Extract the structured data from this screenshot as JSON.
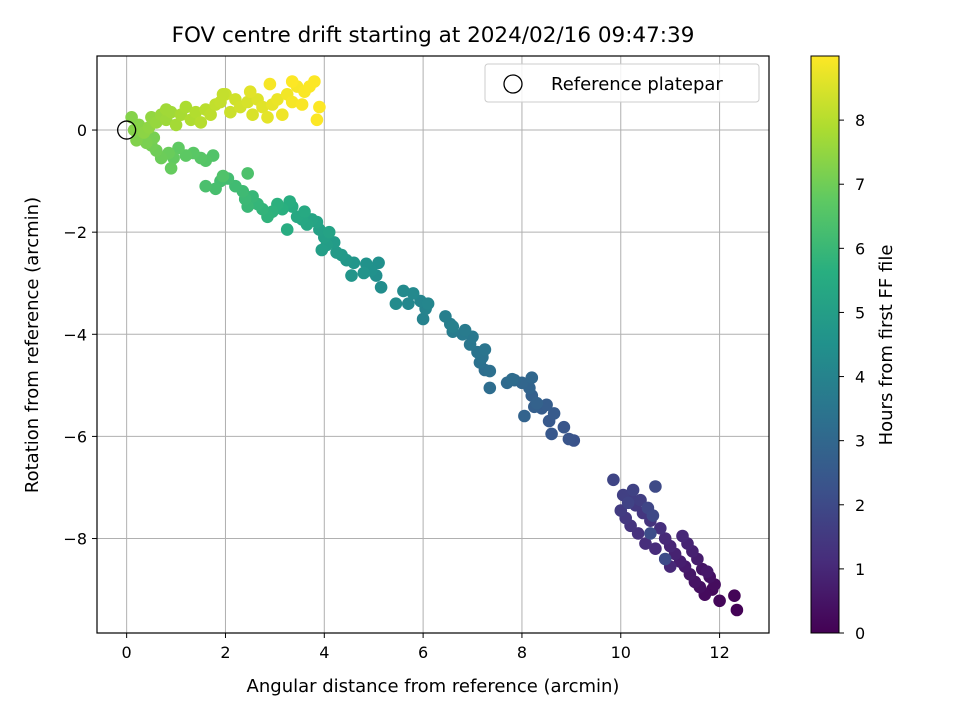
{
  "chart_data": {
    "type": "scatter",
    "title": "FOV centre drift starting at 2024/02/16 09:47:39",
    "xlabel": "Angular distance from reference (arcmin)",
    "ylabel": "Rotation from reference (arcmin)",
    "xlim": [
      -0.6,
      13.0
    ],
    "ylim": [
      -9.85,
      1.45
    ],
    "x_ticks": [
      0,
      2,
      4,
      6,
      8,
      10,
      12
    ],
    "x_tick_labels": [
      "0",
      "2",
      "4",
      "6",
      "8",
      "10",
      "12"
    ],
    "y_ticks": [
      0,
      -2,
      -4,
      -6,
      -8
    ],
    "y_tick_labels": [
      "0",
      "−2",
      "−4",
      "−6",
      "−8"
    ],
    "grid": true,
    "legend": {
      "placement": "top-right",
      "entries": [
        "Reference platepar"
      ]
    },
    "reference_point": {
      "x": 0,
      "y": 0
    },
    "colorbar": {
      "label": "Hours from first FF file",
      "colormap": "viridis",
      "range": [
        0,
        9
      ],
      "ticks": [
        0,
        1,
        2,
        3,
        4,
        5,
        6,
        7,
        8
      ],
      "tick_labels": [
        "0",
        "1",
        "2",
        "3",
        "4",
        "5",
        "6",
        "7",
        "8"
      ]
    },
    "series": [
      {
        "points": [
          [
            12.35,
            -9.4,
            0.05
          ],
          [
            12.3,
            -9.12,
            0.1
          ],
          [
            12.0,
            -9.22,
            0.15
          ],
          [
            11.85,
            -9.0,
            0.2
          ],
          [
            11.7,
            -9.1,
            0.25
          ],
          [
            11.9,
            -8.9,
            0.3
          ],
          [
            11.6,
            -8.95,
            0.35
          ],
          [
            11.8,
            -8.75,
            0.4
          ],
          [
            11.5,
            -8.85,
            0.45
          ],
          [
            11.65,
            -8.6,
            0.5
          ],
          [
            11.4,
            -8.7,
            0.55
          ],
          [
            11.75,
            -8.65,
            0.6
          ],
          [
            11.3,
            -8.55,
            0.65
          ],
          [
            11.55,
            -8.4,
            0.7
          ],
          [
            11.2,
            -8.45,
            0.75
          ],
          [
            11.45,
            -8.25,
            0.8
          ],
          [
            11.1,
            -8.3,
            0.85
          ],
          [
            11.35,
            -8.1,
            0.9
          ],
          [
            11.0,
            -8.15,
            0.95
          ],
          [
            11.25,
            -7.95,
            1.0
          ],
          [
            10.9,
            -8.0,
            1.05
          ],
          [
            10.7,
            -8.2,
            1.1
          ],
          [
            10.5,
            -8.1,
            1.15
          ],
          [
            10.8,
            -7.8,
            1.2
          ],
          [
            10.35,
            -7.9,
            1.25
          ],
          [
            10.6,
            -7.65,
            1.3
          ],
          [
            10.2,
            -7.75,
            1.35
          ],
          [
            10.45,
            -7.5,
            1.4
          ],
          [
            10.1,
            -7.6,
            1.45
          ],
          [
            10.3,
            -7.35,
            1.5
          ],
          [
            10.0,
            -7.45,
            1.55
          ],
          [
            10.2,
            -7.2,
            1.6
          ],
          [
            10.4,
            -7.25,
            1.65
          ],
          [
            10.05,
            -7.15,
            1.7
          ],
          [
            10.25,
            -7.05,
            1.75
          ],
          [
            10.15,
            -7.3,
            1.8
          ],
          [
            9.85,
            -6.85,
            1.85
          ],
          [
            10.55,
            -7.4,
            1.9
          ],
          [
            10.65,
            -7.55,
            1.95
          ],
          [
            11.0,
            -8.55,
            1.0
          ],
          [
            10.7,
            -6.98,
            2.0
          ],
          [
            10.9,
            -8.4,
            2.05
          ],
          [
            10.6,
            -7.9,
            2.1
          ],
          [
            9.05,
            -6.08,
            2.3
          ],
          [
            8.95,
            -6.05,
            2.35
          ],
          [
            8.85,
            -5.82,
            2.4
          ],
          [
            8.6,
            -5.95,
            2.45
          ],
          [
            8.55,
            -5.7,
            2.5
          ],
          [
            8.65,
            -5.55,
            2.55
          ],
          [
            8.4,
            -5.45,
            2.6
          ],
          [
            8.5,
            -5.38,
            2.65
          ],
          [
            8.25,
            -5.42,
            2.7
          ],
          [
            8.2,
            -5.2,
            2.75
          ],
          [
            8.3,
            -5.35,
            2.8
          ],
          [
            8.05,
            -5.6,
            2.85
          ],
          [
            8.15,
            -5.05,
            2.9
          ],
          [
            8.0,
            -4.95,
            2.95
          ],
          [
            8.2,
            -4.85,
            3.0
          ],
          [
            7.85,
            -4.9,
            3.05
          ],
          [
            7.7,
            -4.95,
            3.1
          ],
          [
            7.8,
            -4.88,
            3.15
          ],
          [
            7.35,
            -5.05,
            3.2
          ],
          [
            7.25,
            -4.7,
            3.25
          ],
          [
            7.35,
            -4.72,
            3.3
          ],
          [
            7.15,
            -4.55,
            3.35
          ],
          [
            7.2,
            -4.45,
            3.4
          ],
          [
            7.1,
            -4.35,
            3.45
          ],
          [
            7.25,
            -4.3,
            3.5
          ],
          [
            6.95,
            -4.2,
            3.55
          ],
          [
            7.0,
            -4.05,
            3.6
          ],
          [
            6.8,
            -4.0,
            3.65
          ],
          [
            6.85,
            -3.92,
            3.7
          ],
          [
            6.6,
            -3.95,
            3.75
          ],
          [
            6.55,
            -3.8,
            3.8
          ],
          [
            6.45,
            -3.65,
            3.85
          ],
          [
            6.6,
            -3.85,
            3.9
          ],
          [
            6.0,
            -3.7,
            3.95
          ],
          [
            6.05,
            -3.5,
            4.0
          ],
          [
            5.95,
            -3.35,
            4.05
          ],
          [
            6.1,
            -3.4,
            4.1
          ],
          [
            5.7,
            -3.4,
            4.15
          ],
          [
            5.8,
            -3.2,
            4.2
          ],
          [
            5.6,
            -3.15,
            4.25
          ],
          [
            5.45,
            -3.4,
            4.3
          ],
          [
            5.15,
            -3.08,
            4.35
          ],
          [
            5.05,
            -2.85,
            4.4
          ],
          [
            5.1,
            -2.6,
            4.45
          ],
          [
            4.95,
            -2.75,
            4.5
          ],
          [
            4.85,
            -2.62,
            4.55
          ],
          [
            4.8,
            -2.8,
            4.6
          ],
          [
            4.55,
            -2.85,
            4.65
          ],
          [
            4.6,
            -2.6,
            4.7
          ],
          [
            4.45,
            -2.55,
            4.75
          ],
          [
            4.35,
            -2.45,
            4.8
          ],
          [
            4.25,
            -2.4,
            4.85
          ],
          [
            4.2,
            -2.2,
            4.9
          ],
          [
            4.05,
            -2.25,
            4.95
          ],
          [
            3.95,
            -2.35,
            5.0
          ],
          [
            4.0,
            -2.1,
            5.05
          ],
          [
            3.9,
            -1.95,
            5.1
          ],
          [
            4.1,
            -2.0,
            5.15
          ],
          [
            3.85,
            -1.8,
            5.2
          ],
          [
            3.75,
            -1.75,
            5.25
          ],
          [
            3.65,
            -1.85,
            5.3
          ],
          [
            3.55,
            -1.75,
            5.35
          ],
          [
            3.45,
            -1.7,
            5.4
          ],
          [
            3.6,
            -1.6,
            5.45
          ],
          [
            3.35,
            -1.5,
            5.5
          ],
          [
            3.25,
            -1.95,
            5.55
          ],
          [
            3.3,
            -1.4,
            5.6
          ],
          [
            3.15,
            -1.55,
            5.65
          ],
          [
            3.05,
            -1.45,
            5.7
          ],
          [
            2.95,
            -1.6,
            5.75
          ],
          [
            2.85,
            -1.7,
            5.8
          ],
          [
            2.75,
            -1.55,
            5.85
          ],
          [
            2.65,
            -1.45,
            5.9
          ],
          [
            2.55,
            -1.3,
            5.95
          ],
          [
            2.45,
            -1.5,
            6.0
          ],
          [
            2.4,
            -1.35,
            6.05
          ],
          [
            2.35,
            -1.2,
            6.1
          ],
          [
            2.2,
            -1.1,
            6.15
          ],
          [
            2.05,
            -0.95,
            6.2
          ],
          [
            1.9,
            -1.0,
            6.25
          ],
          [
            1.8,
            -1.15,
            6.3
          ],
          [
            1.6,
            -1.1,
            6.35
          ],
          [
            2.45,
            -0.85,
            6.4
          ],
          [
            1.95,
            -0.9,
            6.45
          ],
          [
            1.75,
            -0.5,
            6.5
          ],
          [
            1.6,
            -0.6,
            6.55
          ],
          [
            1.5,
            -0.55,
            6.6
          ],
          [
            1.35,
            -0.45,
            6.65
          ],
          [
            1.2,
            -0.5,
            6.7
          ],
          [
            1.05,
            -0.35,
            6.75
          ],
          [
            0.95,
            -0.55,
            6.8
          ],
          [
            0.9,
            -0.75,
            6.85
          ],
          [
            0.85,
            -0.45,
            6.9
          ],
          [
            0.7,
            -0.55,
            6.95
          ],
          [
            0.6,
            -0.4,
            7.0
          ],
          [
            0.5,
            -0.3,
            7.05
          ],
          [
            0.55,
            -0.15,
            7.1
          ],
          [
            0.4,
            -0.25,
            7.15
          ],
          [
            0.3,
            -0.05,
            7.2
          ],
          [
            0.2,
            -0.2,
            7.25
          ],
          [
            0.15,
            0.0,
            7.3
          ],
          [
            0.25,
            0.1,
            7.35
          ],
          [
            0.35,
            -0.05,
            7.4
          ],
          [
            0.45,
            0.05,
            7.45
          ],
          [
            0.5,
            0.25,
            7.5
          ],
          [
            0.6,
            0.15,
            7.55
          ],
          [
            0.7,
            0.3,
            7.6
          ],
          [
            0.8,
            0.2,
            7.65
          ],
          [
            0.9,
            0.35,
            7.7
          ],
          [
            1.0,
            0.1,
            7.75
          ],
          [
            1.1,
            0.3,
            7.8
          ],
          [
            1.2,
            0.45,
            7.85
          ],
          [
            1.3,
            0.2,
            7.9
          ],
          [
            1.4,
            0.35,
            7.95
          ],
          [
            1.5,
            0.15,
            8.0
          ],
          [
            1.6,
            0.4,
            8.05
          ],
          [
            1.7,
            0.3,
            8.1
          ],
          [
            1.8,
            0.5,
            8.15
          ],
          [
            1.9,
            0.55,
            8.2
          ],
          [
            2.0,
            0.7,
            8.25
          ],
          [
            2.1,
            0.35,
            8.3
          ],
          [
            2.2,
            0.6,
            8.35
          ],
          [
            2.3,
            0.45,
            8.4
          ],
          [
            2.45,
            0.55,
            8.45
          ],
          [
            2.55,
            0.3,
            8.5
          ],
          [
            2.65,
            0.6,
            8.55
          ],
          [
            2.75,
            0.45,
            8.6
          ],
          [
            2.85,
            0.25,
            8.65
          ],
          [
            2.95,
            0.5,
            8.7
          ],
          [
            3.05,
            0.6,
            8.75
          ],
          [
            3.15,
            0.3,
            8.8
          ],
          [
            3.25,
            0.7,
            8.85
          ],
          [
            3.35,
            0.55,
            8.9
          ],
          [
            3.45,
            0.85,
            8.92
          ],
          [
            3.55,
            0.5,
            8.94
          ],
          [
            3.6,
            0.75,
            8.96
          ],
          [
            3.7,
            0.85,
            8.97
          ],
          [
            3.8,
            0.95,
            8.98
          ],
          [
            3.9,
            0.45,
            8.99
          ],
          [
            3.85,
            0.2,
            8.99
          ],
          [
            3.35,
            0.95,
            8.99
          ],
          [
            2.9,
            0.9,
            8.9
          ],
          [
            2.5,
            0.75,
            8.6
          ],
          [
            1.95,
            0.7,
            8.2
          ],
          [
            0.8,
            0.4,
            7.7
          ],
          [
            0.1,
            0.25,
            7.3
          ]
        ]
      }
    ]
  }
}
